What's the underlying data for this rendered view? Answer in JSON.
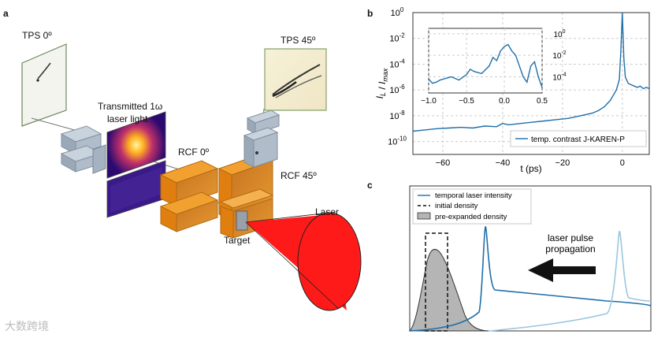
{
  "panel_a": {
    "letter": "a",
    "labels": {
      "tps0": "TPS 0º",
      "tps45": "TPS 45º",
      "transmitted_line1": "Transmitted 1ω",
      "transmitted_line2": "laser light",
      "rcf0": "RCF 0º",
      "rcf45": "RCF 45º",
      "laser": "Laser",
      "target": "Target"
    }
  },
  "panel_b": {
    "letter": "b",
    "chart_data": {
      "type": "line",
      "title": "",
      "xlabel": "t (ps)",
      "ylabel": "I_L / I_max",
      "xlim": [
        -70,
        9
      ],
      "ylim_log10": [
        -11,
        0
      ],
      "xticks": [
        "−60",
        "−40",
        "−20",
        "0"
      ],
      "yticks": [
        "10^0",
        "10^-2",
        "10^-4",
        "10^-6",
        "10^-8",
        "10^-10"
      ],
      "legend": "temp. contrast J-KAREN-P",
      "series": [
        {
          "name": "temp. contrast J-KAREN-P",
          "x": [
            -70,
            -66,
            -62,
            -58,
            -54,
            -50,
            -46,
            -42,
            -40,
            -38,
            -34,
            -30,
            -26,
            -22,
            -18,
            -14,
            -10,
            -8,
            -6,
            -4,
            -2,
            -1,
            -0.5,
            0,
            0.5,
            1,
            2,
            3,
            4,
            5,
            6,
            7,
            8,
            9
          ],
          "log10_y": [
            -9.2,
            -9.1,
            -9.0,
            -8.95,
            -8.9,
            -8.95,
            -8.8,
            -8.85,
            -8.6,
            -8.7,
            -8.6,
            -8.5,
            -8.4,
            -8.3,
            -8.2,
            -8.0,
            -7.8,
            -7.6,
            -7.3,
            -6.8,
            -6.0,
            -5.2,
            -3.0,
            0.0,
            -3.5,
            -5.0,
            -5.5,
            -5.6,
            -5.7,
            -5.8,
            -5.7,
            -5.9,
            -5.8,
            -5.9
          ]
        }
      ],
      "inset": {
        "xlim": [
          -1.0,
          0.5
        ],
        "xticks": [
          "−1.0",
          "−0.5",
          "0.0",
          "0.5"
        ],
        "yticks": [
          "10^0",
          "10^-2",
          "10^-4"
        ],
        "x": [
          -1.0,
          -0.95,
          -0.9,
          -0.85,
          -0.8,
          -0.7,
          -0.6,
          -0.5,
          -0.45,
          -0.4,
          -0.3,
          -0.2,
          -0.15,
          -0.1,
          -0.05,
          0.0,
          0.05,
          0.1,
          0.15,
          0.2,
          0.25,
          0.3,
          0.35,
          0.4,
          0.45,
          0.5
        ],
        "log10_y": [
          -4.2,
          -4.6,
          -4.5,
          -4.3,
          -4.2,
          -4.0,
          -4.3,
          -3.8,
          -3.3,
          -3.5,
          -3.7,
          -3.0,
          -2.2,
          -2.5,
          -1.6,
          -1.2,
          -1.0,
          -1.6,
          -2.0,
          -3.0,
          -4.0,
          -4.5,
          -3.0,
          -2.6,
          -4.0,
          -5.0
        ]
      }
    }
  },
  "panel_c": {
    "letter": "c",
    "legend": {
      "temporal": "temporal laser intensity",
      "initial": "initial density",
      "preexpanded": "pre-expanded density"
    },
    "annotation_line1": "laser pulse",
    "annotation_line2": "propagation"
  },
  "watermark": "大数跨境",
  "colors": {
    "laser_red": "#ff1a1a",
    "rcf_orange": "#f08a12",
    "line_blue": "#1f6fa8",
    "line_light": "#9ac6df"
  }
}
